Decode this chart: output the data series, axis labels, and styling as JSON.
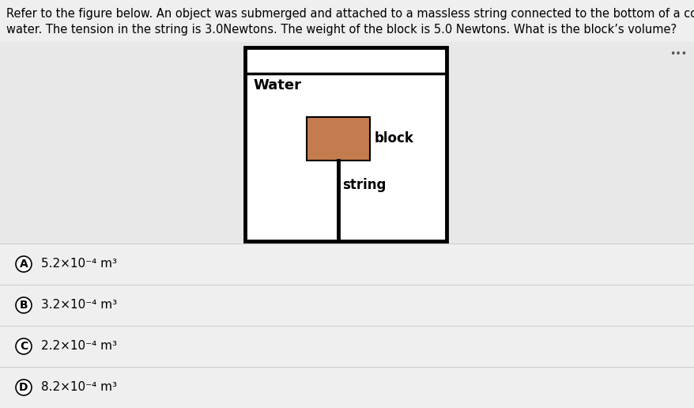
{
  "background_color": "#efefef",
  "question_line1": "Refer to the figure below. An object was submerged and attached to a massless string connected to the bottom of a container with",
  "question_line2": "water. The tension in the string is 3.0Newtons. The weight of the block is 5.0 Newtons. What is the block’s volume?",
  "question_fontsize": 10.5,
  "question_color": "#000000",
  "diagram_bg": "#e8e8e8",
  "container_facecolor": "#ffffff",
  "container_edgecolor": "#000000",
  "container_linewidth": 3.5,
  "water_label": "Water",
  "water_label_fontsize": 13,
  "water_label_bold": true,
  "block_facecolor": "#c47c4e",
  "block_edgecolor": "#000000",
  "block_linewidth": 1.5,
  "block_label": "block",
  "block_label_fontsize": 12,
  "string_linewidth": 3.5,
  "string_color": "#000000",
  "string_label": "string",
  "string_label_fontsize": 12,
  "dots_color": "#555555",
  "dots_fontsize": 9,
  "choices": [
    {
      "letter": "A",
      "text": "5.2×10⁻⁴ m³"
    },
    {
      "letter": "B",
      "text": "3.2×10⁻⁴ m³"
    },
    {
      "letter": "C",
      "text": "2.2×10⁻⁴ m³"
    },
    {
      "letter": "D",
      "text": "8.2×10⁻⁴ m³"
    }
  ],
  "choice_fontsize": 11,
  "choice_letter_fontsize": 10,
  "choice_line_color": "#d0d0d0",
  "choice_circle_size": 11
}
